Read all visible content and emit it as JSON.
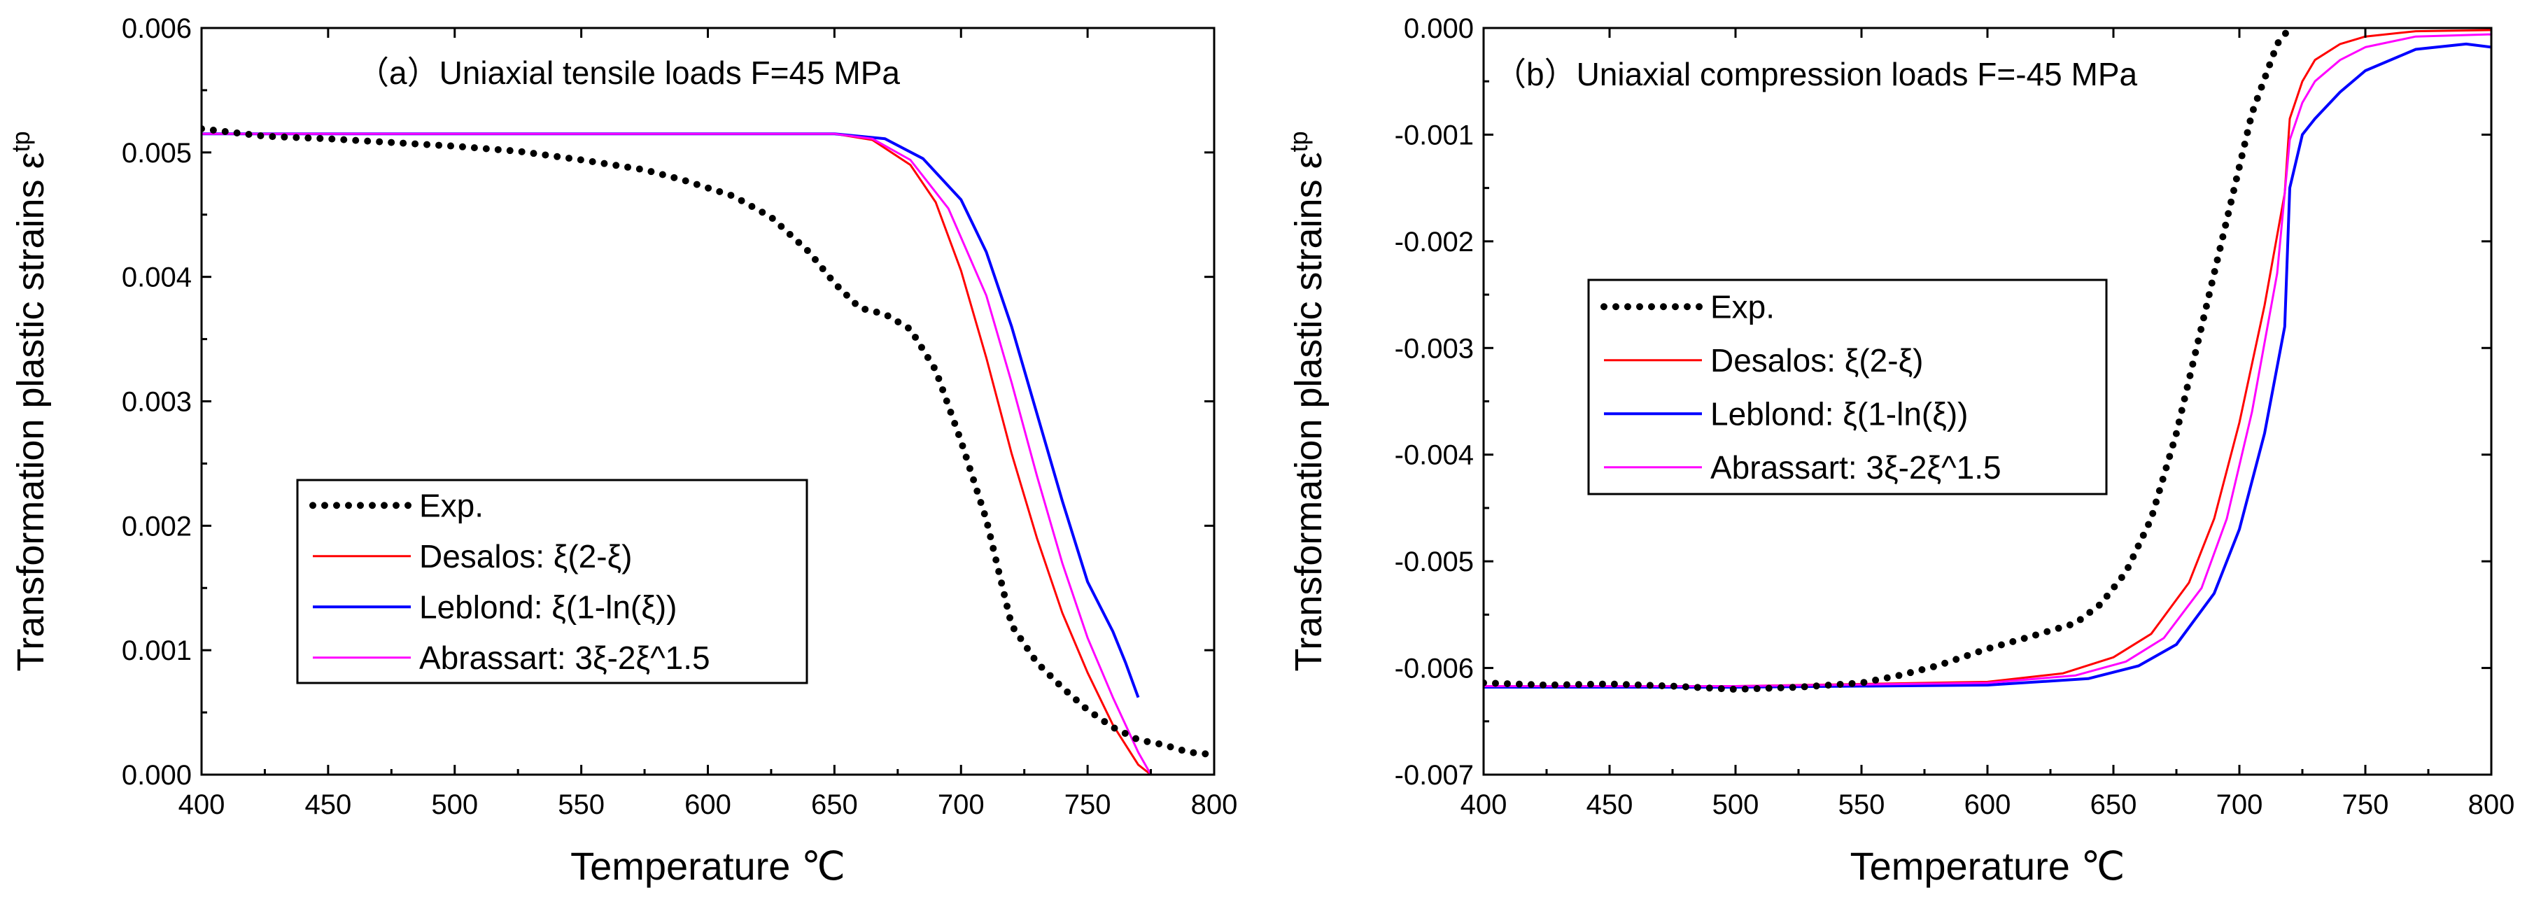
{
  "figure": {
    "style": {
      "background": "#ffffff",
      "axis_color": "#000000"
    }
  },
  "chart_data": [
    {
      "type": "line",
      "title": "（a）Uniaxial tensile loads F=45 MPa",
      "xlabel": "Temperature ℃",
      "ylabel": "Transformation plastic strains ε",
      "ylabel_sup": "tp",
      "xlim": [
        400,
        800
      ],
      "ylim": [
        0.0,
        0.006
      ],
      "xticks": [
        400,
        450,
        500,
        550,
        600,
        650,
        700,
        750,
        800
      ],
      "yticks": [
        0.0,
        0.001,
        0.002,
        0.003,
        0.004,
        0.005,
        0.006
      ],
      "xtick_labels": [
        "400",
        "450",
        "500",
        "550",
        "600",
        "650",
        "700",
        "750",
        "800"
      ],
      "ytick_labels": [
        "0.000",
        "0.001",
        "0.002",
        "0.003",
        "0.004",
        "0.005",
        "0.006"
      ],
      "grid": false,
      "legend_position": "bottom-left",
      "series": [
        {
          "name": "Exp.",
          "color": "#000000",
          "style": "dotted",
          "x": [
            400,
            425,
            450,
            475,
            500,
            525,
            550,
            575,
            590,
            610,
            625,
            640,
            650,
            660,
            670,
            680,
            690,
            700,
            710,
            720,
            730,
            740,
            750,
            760,
            770,
            780,
            790,
            800
          ],
          "y": [
            0.00519,
            0.00513,
            0.00511,
            0.00508,
            0.00505,
            0.00501,
            0.00494,
            0.00486,
            0.00478,
            0.00465,
            0.00448,
            0.0042,
            0.00395,
            0.00375,
            0.0037,
            0.00358,
            0.00325,
            0.00268,
            0.00205,
            0.0012,
            0.0009,
            0.0007,
            0.00052,
            0.00038,
            0.00028,
            0.00024,
            0.00018,
            0.00016
          ]
        },
        {
          "name": "Desalos: ξ(2-ξ)",
          "color": "#ff0000",
          "style": "solid",
          "x": [
            400,
            500,
            600,
            650,
            665,
            680,
            690,
            700,
            710,
            720,
            730,
            740,
            750,
            760,
            770,
            775
          ],
          "y": [
            0.00515,
            0.00515,
            0.00515,
            0.00515,
            0.0051,
            0.0049,
            0.0046,
            0.00405,
            0.00335,
            0.00258,
            0.0019,
            0.0013,
            0.00082,
            0.0004,
            8e-05,
            0.0
          ]
        },
        {
          "name": "Leblond: ξ(1-ln(ξ))",
          "color": "#0000ff",
          "style": "solid",
          "x": [
            400,
            500,
            600,
            650,
            670,
            685,
            700,
            710,
            720,
            730,
            740,
            750,
            760,
            765,
            770
          ],
          "y": [
            0.00515,
            0.00515,
            0.00515,
            0.00515,
            0.00511,
            0.00495,
            0.00462,
            0.0042,
            0.0036,
            0.0029,
            0.0022,
            0.00155,
            0.00115,
            0.0009,
            0.00062
          ]
        },
        {
          "name": "Abrassart: 3ξ-2ξ^1.5",
          "color": "#ff00ff",
          "style": "solid",
          "x": [
            400,
            500,
            600,
            650,
            665,
            680,
            695,
            710,
            720,
            730,
            740,
            750,
            760,
            770,
            775
          ],
          "y": [
            0.00515,
            0.00515,
            0.00515,
            0.00515,
            0.00511,
            0.00494,
            0.00455,
            0.00385,
            0.00315,
            0.0024,
            0.0017,
            0.0011,
            0.00062,
            0.00018,
            0.0
          ]
        }
      ]
    },
    {
      "type": "line",
      "title": "（b）Uniaxial compression loads F=-45 MPa",
      "xlabel": "Temperature ℃",
      "ylabel": "Transformation plastic strains ε",
      "ylabel_sup": "tp",
      "xlim": [
        400,
        800
      ],
      "ylim": [
        -0.007,
        0.0
      ],
      "xticks": [
        400,
        450,
        500,
        550,
        600,
        650,
        700,
        750,
        800
      ],
      "yticks": [
        -0.007,
        -0.006,
        -0.005,
        -0.004,
        -0.003,
        -0.002,
        -0.001,
        0.0
      ],
      "xtick_labels": [
        "400",
        "450",
        "500",
        "550",
        "600",
        "650",
        "700",
        "750",
        "800"
      ],
      "ytick_labels": [
        "-0.007",
        "-0.006",
        "-0.005",
        "-0.004",
        "-0.003",
        "-0.002",
        "-0.001",
        "0.000"
      ],
      "grid": false,
      "legend_position": "middle-left",
      "series": [
        {
          "name": "Exp.",
          "color": "#000000",
          "style": "dotted",
          "x": [
            400,
            425,
            450,
            475,
            500,
            525,
            550,
            565,
            580,
            600,
            615,
            625,
            635,
            645,
            655,
            665,
            675,
            685,
            695,
            705,
            715,
            720
          ],
          "y": [
            -0.00614,
            -0.00616,
            -0.00615,
            -0.00617,
            -0.0062,
            -0.00618,
            -0.00614,
            -0.00607,
            -0.00598,
            -0.00582,
            -0.00572,
            -0.00565,
            -0.00558,
            -0.0054,
            -0.0051,
            -0.0046,
            -0.0038,
            -0.0028,
            -0.0018,
            -0.0008,
            -0.00015,
            0.0
          ]
        },
        {
          "name": "Desalos: ξ(2-ξ)",
          "color": "#ff0000",
          "style": "solid",
          "x": [
            400,
            500,
            600,
            630,
            650,
            665,
            680,
            690,
            700,
            710,
            718,
            720,
            725,
            730,
            740,
            750,
            770,
            800
          ],
          "y": [
            -0.00617,
            -0.00617,
            -0.00613,
            -0.00605,
            -0.0059,
            -0.00568,
            -0.0052,
            -0.0046,
            -0.0037,
            -0.0026,
            -0.00155,
            -0.00085,
            -0.0005,
            -0.0003,
            -0.00015,
            -8e-05,
            -3e-05,
            -2e-05
          ]
        },
        {
          "name": "Leblond: ξ(1-ln(ξ))",
          "color": "#0000ff",
          "style": "solid",
          "x": [
            400,
            500,
            600,
            640,
            660,
            675,
            690,
            700,
            710,
            718,
            720,
            725,
            730,
            740,
            750,
            770,
            790,
            800
          ],
          "y": [
            -0.00618,
            -0.00618,
            -0.00616,
            -0.0061,
            -0.00598,
            -0.00578,
            -0.0053,
            -0.0047,
            -0.0038,
            -0.0028,
            -0.0015,
            -0.001,
            -0.00085,
            -0.0006,
            -0.0004,
            -0.0002,
            -0.00015,
            -0.00018
          ]
        },
        {
          "name": "Abrassart: 3ξ-2ξ^1.5",
          "color": "#ff00ff",
          "style": "solid",
          "x": [
            400,
            500,
            600,
            635,
            655,
            670,
            685,
            695,
            705,
            715,
            720,
            725,
            730,
            740,
            750,
            770,
            800
          ],
          "y": [
            -0.00617,
            -0.00617,
            -0.00614,
            -0.00607,
            -0.00594,
            -0.00572,
            -0.00525,
            -0.0046,
            -0.0036,
            -0.0023,
            -0.00105,
            -0.0007,
            -0.0005,
            -0.0003,
            -0.00018,
            -8e-05,
            -6e-05
          ]
        }
      ]
    }
  ]
}
